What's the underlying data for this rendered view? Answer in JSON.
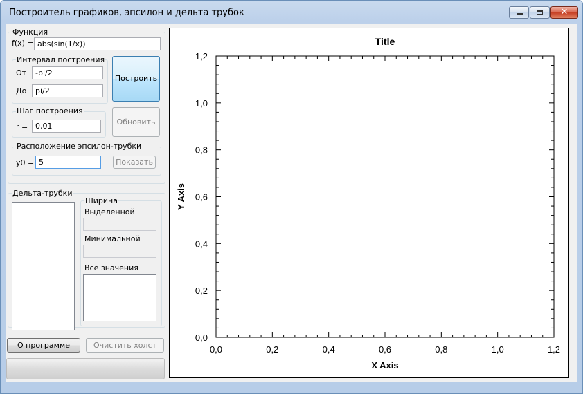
{
  "window": {
    "title": "Построитель графиков, эпсилон и дельта трубок"
  },
  "function_group": {
    "title": "Функция",
    "fx_label": "f(x) =",
    "fx_value": "abs(sin(1/x))",
    "interval": {
      "title": "Интервал построения",
      "from_label": "От",
      "from_value": "-pi/2",
      "to_label": "До",
      "to_value": "pi/2"
    },
    "build_button": "Построить",
    "step": {
      "title": "Шаг построения",
      "r_label": "r =",
      "r_value": "0,01"
    },
    "update_button": "Обновить",
    "epsilon": {
      "title": "Расположение эпсилон-трубки",
      "y0_label": "y0 =",
      "y0_value": "5",
      "show_button": "Показать"
    }
  },
  "delta_group": {
    "title": "Дельта-трубки",
    "width_group": {
      "title": "Ширина",
      "selected_label": "Выделенной",
      "selected_value": "",
      "minimal_label": "Минимальной",
      "minimal_value": "",
      "all_label": "Все значения"
    }
  },
  "bottom": {
    "about_button": "О программе",
    "clear_button": "Очистить холст",
    "progress": 0
  },
  "chart_data": {
    "type": "line",
    "title": "Title",
    "xlabel": "X Axis",
    "ylabel": "Y Axis",
    "xlim": [
      0,
      1.2
    ],
    "ylim": [
      0,
      1.2
    ],
    "xticks": [
      "0,0",
      "0,2",
      "0,4",
      "0,6",
      "0,8",
      "1,0",
      "1,2"
    ],
    "yticks": [
      "0,0",
      "0,2",
      "0,4",
      "0,6",
      "0,8",
      "1,0",
      "1,2"
    ],
    "series": []
  }
}
